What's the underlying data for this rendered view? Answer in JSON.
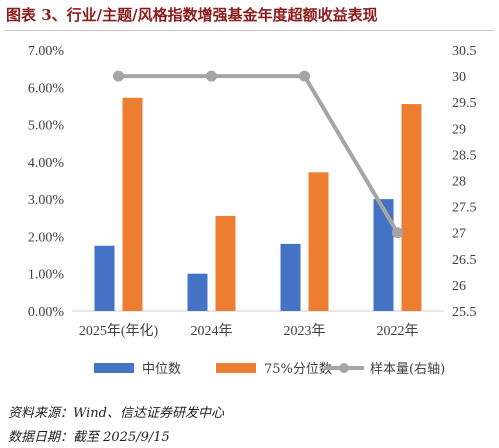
{
  "title": "图表 3、行业/主题/风格指数增强基金年度超额收益表现",
  "footer": {
    "source": "资料来源：Wind、信达证券研发中心",
    "date": "数据日期：截至 2025/9/15"
  },
  "colors": {
    "median": "#4472c4",
    "p75": "#ed7d31",
    "sample": "#a5a5a5"
  },
  "chart_data": {
    "type": "bar",
    "categories": [
      "2025年(年化)",
      "2024年",
      "2023年",
      "2022年"
    ],
    "series": [
      {
        "name": "中位数",
        "type": "bar",
        "axis": "left",
        "values": [
          0.0175,
          0.01,
          0.018,
          0.03
        ]
      },
      {
        "name": "75%分位数",
        "type": "bar",
        "axis": "left",
        "values": [
          0.0572,
          0.0255,
          0.0372,
          0.0555
        ]
      },
      {
        "name": "样本量(右轴)",
        "type": "line",
        "axis": "right",
        "values": [
          30,
          30,
          30,
          27
        ]
      }
    ],
    "y_left": {
      "ticks": [
        "0.00%",
        "1.00%",
        "2.00%",
        "3.00%",
        "4.00%",
        "5.00%",
        "6.00%",
        "7.00%"
      ],
      "ylim": [
        0,
        0.07
      ]
    },
    "y_right": {
      "ticks": [
        "25.5",
        "26",
        "26.5",
        "27",
        "27.5",
        "28",
        "28.5",
        "29",
        "29.5",
        "30",
        "30.5"
      ],
      "ylim": [
        25.5,
        30.5
      ]
    },
    "legend": "bottom",
    "grid": false
  }
}
